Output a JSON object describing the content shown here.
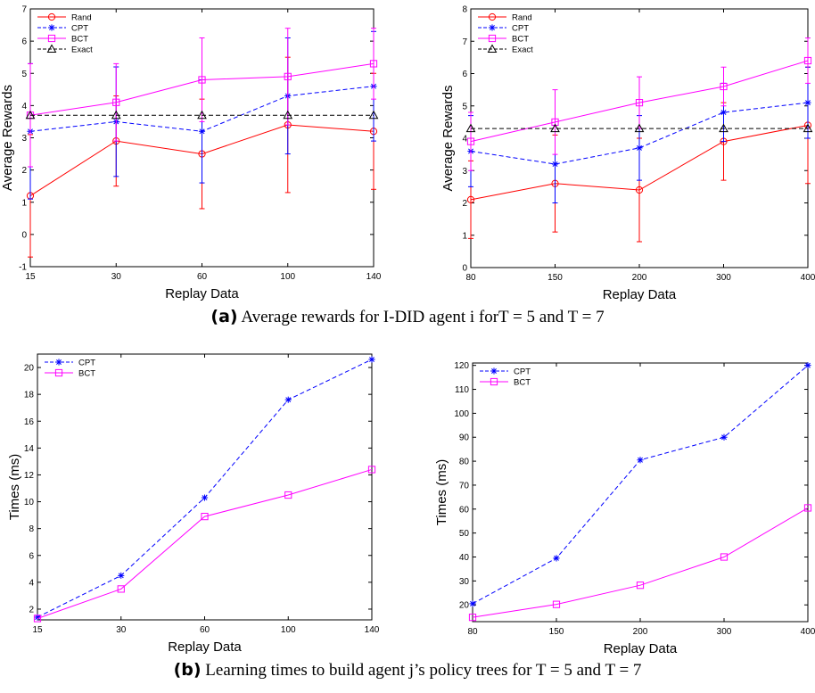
{
  "chart_data": [
    {
      "type": "line",
      "panel": "a-left",
      "xlabel": "Replay Data",
      "ylabel": "Average Rewards",
      "categories": [
        "15",
        "30",
        "60",
        "100",
        "140"
      ],
      "ylim": [
        -1,
        7
      ],
      "yticks": [
        -1,
        0,
        1,
        2,
        3,
        4,
        5,
        6,
        7
      ],
      "legend_position": "top-left",
      "series": [
        {
          "name": "Rand",
          "color": "#ff0000",
          "dash": "solid",
          "marker": "circle",
          "values": [
            1.2,
            2.9,
            2.5,
            3.4,
            3.2
          ],
          "error": [
            1.9,
            1.4,
            1.7,
            2.1,
            1.8
          ]
        },
        {
          "name": "CPT",
          "color": "#0000ff",
          "dash": "dashed",
          "marker": "star",
          "values": [
            3.2,
            3.5,
            3.2,
            4.3,
            4.6
          ],
          "error": [
            2.1,
            1.7,
            1.6,
            1.8,
            1.7
          ]
        },
        {
          "name": "BCT",
          "color": "#ff00ff",
          "dash": "solid",
          "marker": "square",
          "values": [
            3.7,
            4.1,
            4.8,
            4.9,
            5.3
          ],
          "error": [
            1.6,
            1.2,
            1.3,
            1.5,
            1.1
          ]
        },
        {
          "name": "Exact",
          "color": "#000000",
          "dash": "dashed",
          "marker": "triangle",
          "values": [
            3.7,
            3.7,
            3.7,
            3.7,
            3.7
          ]
        }
      ]
    },
    {
      "type": "line",
      "panel": "a-right",
      "xlabel": "Replay Data",
      "ylabel": "Average Rewards",
      "categories": [
        "80",
        "150",
        "200",
        "300",
        "400"
      ],
      "ylim": [
        0,
        8
      ],
      "yticks": [
        0,
        1,
        2,
        3,
        4,
        5,
        6,
        7,
        8
      ],
      "legend_position": "top-left",
      "series": [
        {
          "name": "Rand",
          "color": "#ff0000",
          "dash": "solid",
          "marker": "circle",
          "values": [
            2.1,
            2.6,
            2.4,
            3.9,
            4.4
          ],
          "error": [
            1.2,
            1.5,
            1.6,
            1.2,
            1.8
          ]
        },
        {
          "name": "CPT",
          "color": "#0000ff",
          "dash": "dashed",
          "marker": "star",
          "values": [
            3.6,
            3.2,
            3.7,
            4.8,
            5.1
          ],
          "error": [
            1.1,
            1.2,
            1.0,
            0.9,
            1.1
          ]
        },
        {
          "name": "BCT",
          "color": "#ff00ff",
          "dash": "solid",
          "marker": "square",
          "values": [
            3.9,
            4.5,
            5.1,
            5.6,
            6.4
          ],
          "error": [
            0.9,
            1.0,
            0.8,
            0.6,
            0.7
          ]
        },
        {
          "name": "Exact",
          "color": "#000000",
          "dash": "dashed",
          "marker": "triangle",
          "values": [
            4.3,
            4.3,
            4.3,
            4.3,
            4.3
          ]
        }
      ]
    },
    {
      "type": "line",
      "panel": "b-left",
      "xlabel": "Replay Data",
      "ylabel": "Times (ms)",
      "categories": [
        "15",
        "30",
        "60",
        "100",
        "140"
      ],
      "ylim": [
        1.2,
        21
      ],
      "yticks": [
        2,
        4,
        6,
        8,
        10,
        12,
        14,
        16,
        18,
        20
      ],
      "legend_position": "top-left",
      "series": [
        {
          "name": "CPT",
          "color": "#0000ff",
          "dash": "dashed",
          "marker": "star",
          "values": [
            1.4,
            4.5,
            10.3,
            17.6,
            20.6
          ]
        },
        {
          "name": "BCT",
          "color": "#ff00ff",
          "dash": "solid",
          "marker": "square",
          "values": [
            1.3,
            3.5,
            8.9,
            10.5,
            12.4
          ]
        }
      ]
    },
    {
      "type": "line",
      "panel": "b-right",
      "xlabel": "Replay Data",
      "ylabel": "Times (ms)",
      "categories": [
        "80",
        "150",
        "200",
        "300",
        "400"
      ],
      "ylim": [
        13,
        121
      ],
      "yticks": [
        20,
        30,
        40,
        50,
        60,
        70,
        80,
        90,
        100,
        110,
        120
      ],
      "legend_position": "top-left",
      "series": [
        {
          "name": "CPT",
          "color": "#0000ff",
          "dash": "dashed",
          "marker": "star",
          "values": [
            20.5,
            39.5,
            80.5,
            90,
            120
          ]
        },
        {
          "name": "BCT",
          "color": "#ff00ff",
          "dash": "solid",
          "marker": "square",
          "values": [
            14.8,
            20.2,
            28.2,
            40,
            60.5
          ]
        }
      ]
    }
  ],
  "captions": {
    "a_tag": "(a)",
    "a_text": "Average rewards for I-DID agent i forT = 5 and T = 7",
    "b_tag": "(b)",
    "b_text": "Learning times to build agent j’s policy trees for T = 5 and T = 7"
  }
}
